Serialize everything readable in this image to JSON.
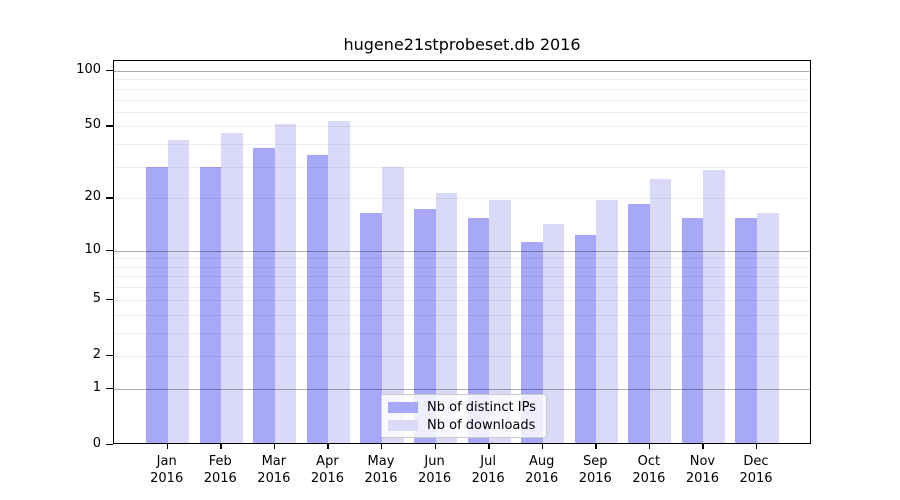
{
  "chart_data": {
    "type": "bar",
    "title": "hugene21stprobeset.db 2016",
    "categories": [
      "Jan",
      "Feb",
      "Mar",
      "Apr",
      "May",
      "Jun",
      "Jul",
      "Aug",
      "Sep",
      "Oct",
      "Nov",
      "Dec"
    ],
    "category_year": "2016",
    "series": [
      {
        "name": "Nb of distinct IPs",
        "color": "#a8a8f8",
        "values": [
          29,
          29,
          37,
          34,
          16,
          17,
          15,
          11,
          12,
          18,
          15,
          15
        ]
      },
      {
        "name": "Nb of downloads",
        "color": "#dadaf8",
        "values": [
          41,
          45,
          50,
          52,
          29,
          21,
          19,
          14,
          19,
          25,
          28,
          16
        ]
      }
    ],
    "y_scale": "log10(1+x)",
    "y_ticks": [
      0,
      1,
      2,
      5,
      10,
      20,
      50,
      100
    ],
    "ylim": [
      0,
      115
    ],
    "grid": "on",
    "legend_position": "inside-bottom-center"
  }
}
